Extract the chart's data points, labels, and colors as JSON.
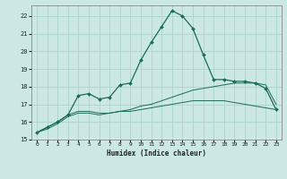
{
  "title": "",
  "xlabel": "Humidex (Indice chaleur)",
  "bg_color": "#cce8e4",
  "grid_color": "#aad4cc",
  "line_color": "#1a6b5a",
  "xlim": [
    -0.5,
    23.5
  ],
  "ylim": [
    15,
    22.6
  ],
  "xticks": [
    0,
    1,
    2,
    3,
    4,
    5,
    6,
    7,
    8,
    9,
    10,
    11,
    12,
    13,
    14,
    15,
    16,
    17,
    18,
    19,
    20,
    21,
    22,
    23
  ],
  "yticks": [
    15,
    16,
    17,
    18,
    19,
    20,
    21,
    22
  ],
  "curve1_x": [
    0,
    1,
    2,
    3,
    4,
    5,
    6,
    7,
    8,
    9,
    10,
    11,
    12,
    13,
    14,
    15,
    16,
    17,
    18,
    19,
    20,
    21,
    22,
    23
  ],
  "curve1_y": [
    15.4,
    15.7,
    16.0,
    16.4,
    17.5,
    17.6,
    17.3,
    17.4,
    18.1,
    18.2,
    19.5,
    20.5,
    21.4,
    22.3,
    22.0,
    21.3,
    19.8,
    18.4,
    18.4,
    18.3,
    18.3,
    18.2,
    17.9,
    16.7
  ],
  "curve2_x": [
    0,
    1,
    2,
    3,
    4,
    5,
    6,
    7,
    8,
    9,
    10,
    11,
    12,
    13,
    14,
    15,
    16,
    17,
    18,
    19,
    20,
    21,
    22,
    23
  ],
  "curve2_y": [
    15.4,
    15.7,
    16.0,
    16.4,
    16.6,
    16.6,
    16.5,
    16.5,
    16.6,
    16.7,
    16.9,
    17.0,
    17.2,
    17.4,
    17.6,
    17.8,
    17.9,
    18.0,
    18.1,
    18.2,
    18.2,
    18.2,
    18.1,
    17.0
  ],
  "curve3_x": [
    0,
    1,
    2,
    3,
    4,
    5,
    6,
    7,
    8,
    9,
    10,
    11,
    12,
    13,
    14,
    15,
    16,
    17,
    18,
    19,
    20,
    21,
    22,
    23
  ],
  "curve3_y": [
    15.4,
    15.6,
    15.9,
    16.3,
    16.5,
    16.5,
    16.4,
    16.5,
    16.6,
    16.6,
    16.7,
    16.8,
    16.9,
    17.0,
    17.1,
    17.2,
    17.2,
    17.2,
    17.2,
    17.1,
    17.0,
    16.9,
    16.8,
    16.7
  ],
  "ylabel_ticks": [
    "15",
    "16",
    "17",
    "18",
    "19",
    "20",
    "21",
    "22"
  ]
}
